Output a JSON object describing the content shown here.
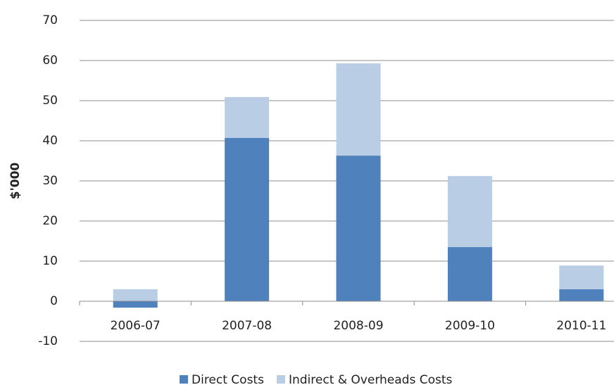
{
  "chart_data": {
    "type": "stacked_bar",
    "y_label": "$'000",
    "categories": [
      "2006-07",
      "2007-08",
      "2008-09",
      "2009-10",
      "2010-11"
    ],
    "series": [
      {
        "name": "Direct Costs",
        "color": "#4f81bd",
        "values": [
          -1.6,
          40.7,
          36.3,
          13.5,
          3.0
        ]
      },
      {
        "name": "Indirect & Overheads Costs",
        "color": "#b9cde5",
        "values": [
          3.0,
          10.2,
          23.0,
          17.7,
          5.9
        ]
      }
    ],
    "ylim": [
      -10,
      70
    ],
    "yticks": [
      -10,
      0,
      10,
      20,
      30,
      40,
      50,
      60,
      70
    ],
    "grid": true,
    "legend": "bottom"
  }
}
